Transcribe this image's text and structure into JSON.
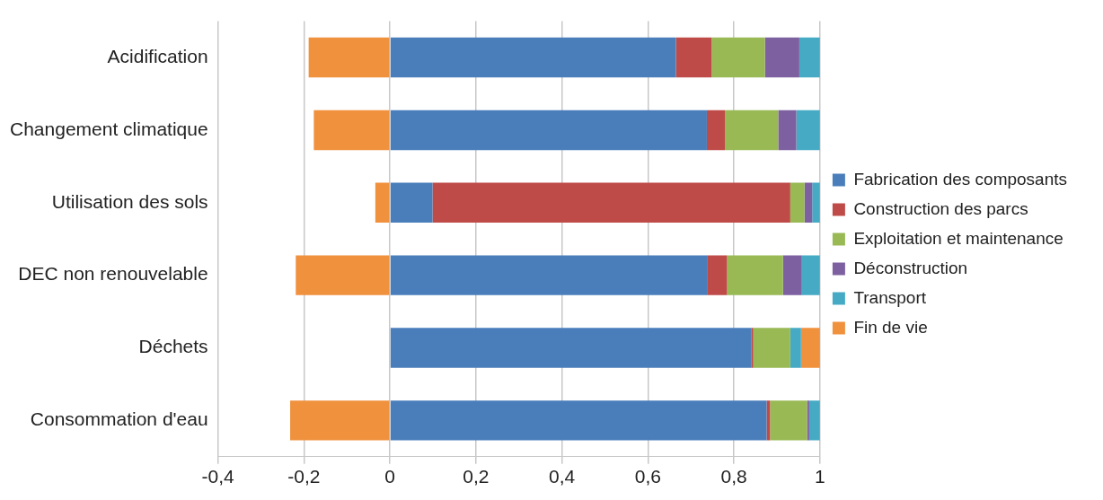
{
  "chart_data": {
    "type": "bar",
    "orientation": "horizontal",
    "stacked": true,
    "categories": [
      "Acidification",
      "Changement climatique",
      "Utilisation des sols",
      "DEC non renouvelable",
      "Déchets",
      "Consommation d'eau"
    ],
    "series": [
      {
        "name": "Fabrication des composants",
        "color": "#4a7ebb",
        "values": [
          0.665,
          0.737,
          0.099,
          0.739,
          0.84,
          0.876
        ]
      },
      {
        "name": "Construction des parcs",
        "color": "#be4b48",
        "values": [
          0.083,
          0.042,
          0.832,
          0.045,
          0.005,
          0.008
        ]
      },
      {
        "name": "Exploitation et maintenance",
        "color": "#98b954",
        "values": [
          0.124,
          0.124,
          0.033,
          0.13,
          0.086,
          0.086
        ]
      },
      {
        "name": "Déconstruction",
        "color": "#7d60a0",
        "values": [
          0.08,
          0.042,
          0.018,
          0.044,
          0,
          0.005
        ]
      },
      {
        "name": "Transport",
        "color": "#46aac5",
        "values": [
          0.048,
          0.055,
          0.018,
          0.042,
          0.025,
          0.025
        ]
      },
      {
        "name": "Fin de vie",
        "color": "#f0913e",
        "values": [
          -0.189,
          -0.177,
          -0.034,
          -0.219,
          0.044,
          -0.232
        ]
      }
    ],
    "xlim": [
      -0.4,
      1
    ],
    "xticks": [
      {
        "value": -0.4,
        "label": "-0,4"
      },
      {
        "value": -0.2,
        "label": "-0,2"
      },
      0,
      {
        "value": 0.2,
        "label": "0,2"
      },
      {
        "value": 0.4,
        "label": "0,4"
      },
      {
        "value": 0.6,
        "label": "0,6"
      },
      {
        "value": 0.8,
        "label": "0,8"
      },
      1
    ],
    "grid": "x",
    "legend": "right"
  }
}
